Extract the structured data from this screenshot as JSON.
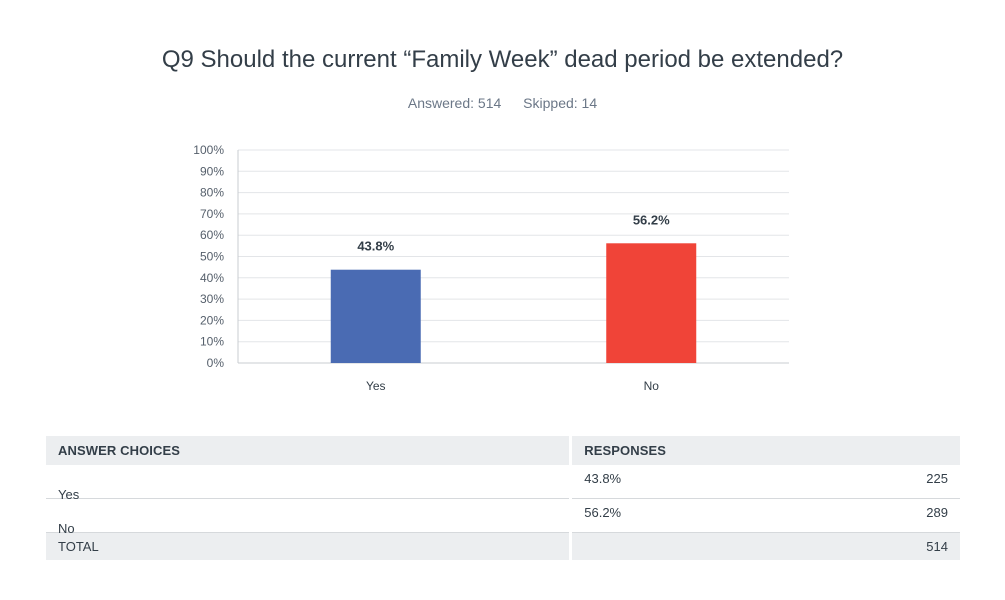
{
  "title": "Q9 Should the current “Family Week” dead period be extended?",
  "stats": {
    "answered": "Answered: 514",
    "skipped": "Skipped: 14"
  },
  "colors": {
    "yes": "#4a6bb3",
    "no": "#f04438",
    "grid": "#e3e5e8",
    "axis": "#c8ccd0"
  },
  "chart_data": {
    "type": "bar",
    "title": "Q9 Should the current “Family Week” dead period be extended?",
    "categories": [
      "Yes",
      "No"
    ],
    "values": [
      43.8,
      56.2
    ],
    "data_labels": [
      "43.8%",
      "56.2%"
    ],
    "colors": [
      "#4a6bb3",
      "#f04438"
    ],
    "ylim": [
      0,
      100
    ],
    "yticks": [
      "0%",
      "10%",
      "20%",
      "30%",
      "40%",
      "50%",
      "60%",
      "70%",
      "80%",
      "90%",
      "100%"
    ],
    "xlabel": "",
    "ylabel": "",
    "grid": true
  },
  "table": {
    "headers": [
      "ANSWER CHOICES",
      "RESPONSES"
    ],
    "rows": [
      {
        "choice": "Yes",
        "percent": "43.8%",
        "count": "225"
      },
      {
        "choice": "No",
        "percent": "56.2%",
        "count": "289"
      }
    ],
    "total": {
      "label": "TOTAL",
      "count": "514"
    }
  }
}
